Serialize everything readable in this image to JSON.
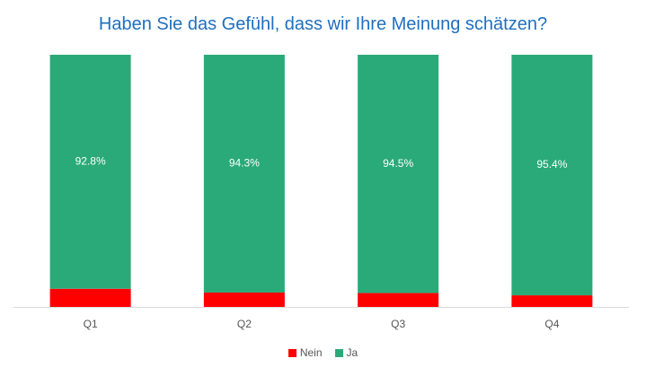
{
  "colors": {
    "nein": "#ff0000",
    "ja": "#2aaa78",
    "title": "#1f6fbf"
  },
  "chart_data": {
    "type": "bar",
    "stacked": true,
    "title": "Haben Sie das Gefühl, dass wir Ihre Meinung schätzen?",
    "categories": [
      "Q1",
      "Q2",
      "Q3",
      "Q4"
    ],
    "series": [
      {
        "name": "Nein",
        "values": [
          7.2,
          5.7,
          5.5,
          4.6
        ],
        "labels": [
          "",
          "",
          "",
          ""
        ]
      },
      {
        "name": "Ja",
        "values": [
          92.8,
          94.3,
          94.5,
          95.4
        ],
        "labels": [
          "92.8%",
          "94.3%",
          "94.5%",
          "95.4%"
        ]
      }
    ],
    "ylim": [
      0,
      100
    ],
    "grid": false,
    "legend": "bottom"
  }
}
